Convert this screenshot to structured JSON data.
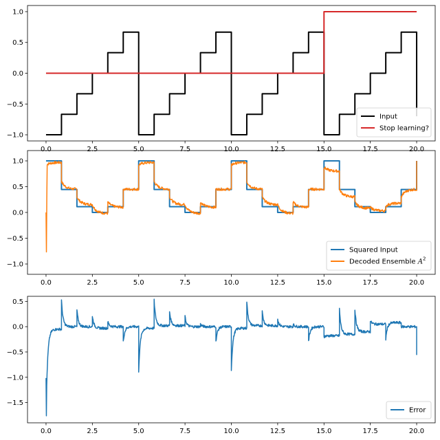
{
  "chart_data": [
    {
      "type": "line",
      "x": [
        0,
        0.8333,
        1.6667,
        2.5,
        3.3333,
        4.1667,
        5,
        5.8333,
        6.6667,
        7.5,
        8.3333,
        9.1667,
        10,
        10.8333,
        11.6667,
        12.5,
        13.3333,
        14.1667,
        15,
        15.8333,
        16.6667,
        17.5,
        18.3333,
        19.1667,
        20
      ],
      "xlim": [
        -1,
        21
      ],
      "ylim": [
        -1.1,
        1.1
      ],
      "xticks": [
        "0.0",
        "2.5",
        "5.0",
        "7.5",
        "10.0",
        "12.5",
        "15.0",
        "17.5",
        "20.0"
      ],
      "yticks": [
        "−1.0",
        "−0.5",
        "0.0",
        "0.5",
        "1.0"
      ],
      "series": [
        {
          "name": "Input",
          "color": "#000000",
          "step": true,
          "values": [
            -1,
            -0.6667,
            -0.3333,
            0,
            0.3333,
            0.6667,
            -1,
            -0.6667,
            -0.3333,
            0,
            0.3333,
            0.6667,
            -1,
            -0.6667,
            -0.3333,
            0,
            0.3333,
            0.6667,
            -1,
            -0.6667,
            -0.3333,
            0,
            0.3333,
            0.6667,
            -0.7
          ]
        },
        {
          "name": "Stop learning?",
          "color": "#d62728",
          "step": true,
          "values": [
            0,
            0,
            0,
            0,
            0,
            0,
            0,
            0,
            0,
            0,
            0,
            0,
            0,
            0,
            0,
            0,
            0,
            0,
            1,
            1,
            1,
            1,
            1,
            1,
            1
          ]
        }
      ],
      "legend": "lower-right",
      "grid": false
    },
    {
      "type": "line",
      "x": [
        0,
        0.8333,
        1.6667,
        2.5,
        3.3333,
        4.1667,
        5,
        5.8333,
        6.6667,
        7.5,
        8.3333,
        9.1667,
        10,
        10.8333,
        11.6667,
        12.5,
        13.3333,
        14.1667,
        15,
        15.8333,
        16.6667,
        17.5,
        18.3333,
        19.1667,
        20
      ],
      "xlim": [
        -1,
        21
      ],
      "ylim": [
        -1.2,
        1.2
      ],
      "xticks": [
        "0.0",
        "2.5",
        "5.0",
        "7.5",
        "10.0",
        "12.5",
        "15.0",
        "17.5",
        "20.0"
      ],
      "yticks": [
        "−1.0",
        "−0.5",
        "0.0",
        "0.5",
        "1.0"
      ],
      "series": [
        {
          "name": "Squared Input",
          "color": "#1f77b4",
          "step": true,
          "values": [
            1,
            0.4444,
            0.1111,
            0,
            0.1111,
            0.4444,
            1,
            0.4444,
            0.1111,
            0,
            0.1111,
            0.4444,
            1,
            0.4444,
            0.1111,
            0,
            0.1111,
            0.4444,
            1,
            0.4444,
            0.1111,
            0,
            0.1111,
            0.4444,
            1
          ]
        },
        {
          "name": "Decoded Ensemble A²",
          "name_text": "Decoded Ensemble ",
          "name_math": "A",
          "name_sup": "2",
          "color": "#ff7f0e",
          "segment_starts": [
            0.92,
            0.6,
            0.3,
            0.15,
            0.2,
            0.45,
            0.92,
            0.6,
            0.3,
            0.15,
            0.2,
            0.45,
            0.92,
            0.6,
            0.3,
            0.15,
            0.2,
            0.45,
            0.88,
            0.45,
            0.2,
            0.1,
            0.12,
            0.3,
            0.45
          ],
          "segment_ends": [
            0.97,
            0.45,
            0.15,
            -0.02,
            0.1,
            0.45,
            0.97,
            0.45,
            0.15,
            -0.02,
            0.1,
            0.45,
            0.97,
            0.45,
            0.15,
            -0.02,
            0.1,
            0.45,
            0.8,
            0.3,
            0.08,
            0.03,
            0.18,
            0.45,
            0.45
          ],
          "initial_dip": -0.77
        }
      ],
      "legend": "lower-right",
      "grid": false
    },
    {
      "type": "line",
      "x": [
        0,
        0.8333,
        1.6667,
        2.5,
        3.3333,
        4.1667,
        5,
        5.8333,
        6.6667,
        7.5,
        8.3333,
        9.1667,
        10,
        10.8333,
        11.6667,
        12.5,
        13.3333,
        14.1667,
        15,
        15.8333,
        16.6667,
        17.5,
        18.3333,
        19.1667,
        20
      ],
      "xlim": [
        -1,
        21
      ],
      "ylim": [
        -1.9,
        0.6
      ],
      "xticks": [
        "0.0",
        "2.5",
        "5.0",
        "7.5",
        "10.0",
        "12.5",
        "15.0",
        "17.5",
        "20.0"
      ],
      "yticks": [
        "−1.5",
        "−1.0",
        "−0.5",
        "0.0",
        "0.5"
      ],
      "series": [
        {
          "name": "Error",
          "color": "#1f77b4",
          "segment_spikes": [
            -1.78,
            0.52,
            0.33,
            0.22,
            0.1,
            -0.3,
            -0.88,
            0.52,
            0.3,
            0.2,
            0.05,
            -0.3,
            -0.85,
            0.5,
            0.3,
            0.15,
            0.05,
            -0.3,
            -0.2,
            0.35,
            0.35,
            0.12,
            -0.25,
            0.0,
            -0.56
          ],
          "segment_levels": [
            -0.05,
            0.0,
            0.0,
            -0.03,
            0.0,
            0.0,
            -0.03,
            0.02,
            0.02,
            0.0,
            0.0,
            0.0,
            -0.03,
            0.02,
            0.02,
            0.0,
            0.0,
            0.0,
            -0.18,
            -0.15,
            -0.1,
            0.05,
            0.08,
            0.0,
            0.0
          ]
        }
      ],
      "legend": "lower-right",
      "grid": false
    }
  ]
}
